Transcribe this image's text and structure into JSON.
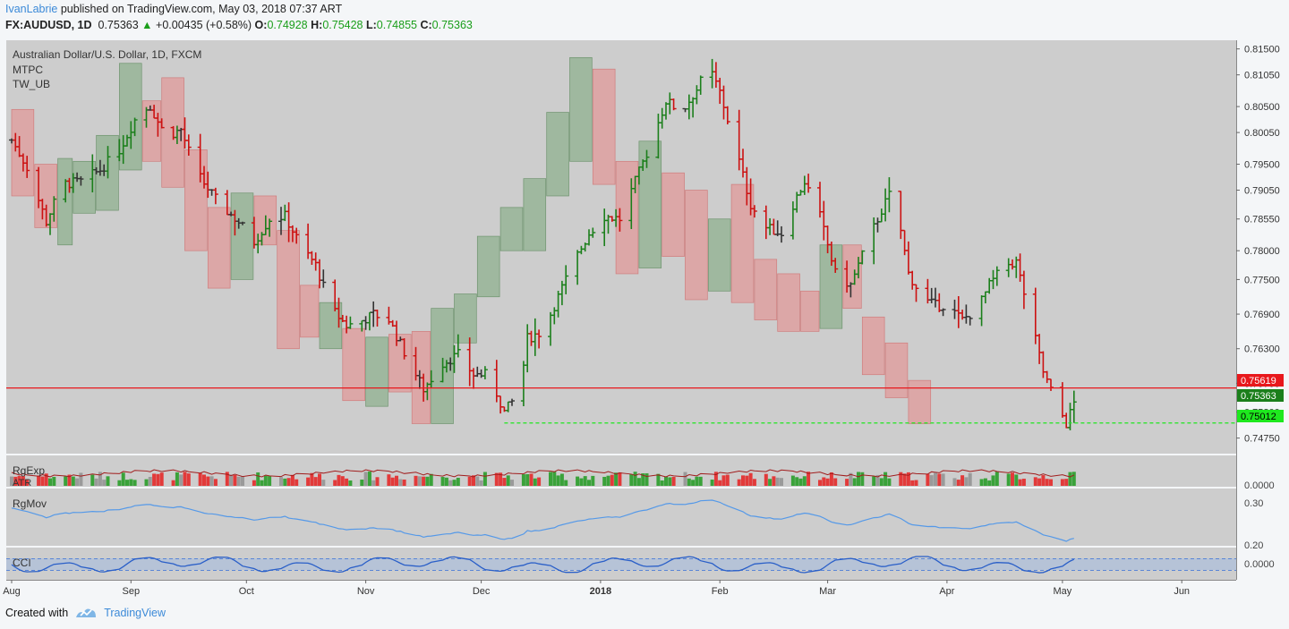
{
  "header": {
    "author": "IvanLabrie",
    "published": "published on TradingView.com, May 03, 2018 07:37 ART",
    "symbol": "FX:AUDUSD, 1D",
    "last": "0.75363",
    "change": "+0.00435 (+0.58%)",
    "change_arrow": "▲",
    "o_label": "O:",
    "o": "0.74928",
    "h_label": "H:",
    "h": "0.75428",
    "l_label": "L:",
    "l": "0.74855",
    "c_label": "C:",
    "c": "0.75363"
  },
  "footer": {
    "created_with": "Created with",
    "brand": "TradingView"
  },
  "chart_data": {
    "type": "ohlc",
    "title": "Australian Dollar/U.S. Dollar, 1D, FXCM",
    "indicators": [
      "MTPC",
      "TW_UB"
    ],
    "price_axis_ticks": [
      "0.81500",
      "0.81050",
      "0.80500",
      "0.80050",
      "0.79500",
      "0.79050",
      "0.78550",
      "0.78000",
      "0.77500",
      "0.76900",
      "0.76300",
      "0.75700",
      "0.75200",
      "0.74750"
    ],
    "price_range": [
      0.7448,
      0.8165
    ],
    "x_ticks": [
      {
        "label": "Aug",
        "day": 0
      },
      {
        "label": "Sep",
        "day": 31
      },
      {
        "label": "Oct",
        "day": 61
      },
      {
        "label": "Nov",
        "day": 92
      },
      {
        "label": "Dec",
        "day": 122
      },
      {
        "label": "2018",
        "day": 153
      },
      {
        "label": "Feb",
        "day": 184
      },
      {
        "label": "Mar",
        "day": 212
      },
      {
        "label": "Apr",
        "day": 243
      },
      {
        "label": "May",
        "day": 273
      },
      {
        "label": "Jun",
        "day": 304
      }
    ],
    "horizontal_lines": [
      {
        "value": 0.75619,
        "label": "0.75619",
        "color": "#e8181c",
        "style": "solid"
      },
      {
        "value": 0.75012,
        "label": "0.75012",
        "color": "#1ee81e",
        "style": "dashed"
      }
    ],
    "last_price_label": "0.75363",
    "colors": {
      "up": "#1b7f1b",
      "down": "#cc1111",
      "neutral": "#333333",
      "box_up": "#8fb08f",
      "box_down": "#e09a9a",
      "volume_up": "#3aa23a",
      "volume_down": "#e23a3a",
      "volume_neutral": "#9a9a9a",
      "line": "#5599e8"
    },
    "swing_path": [
      [
        0,
        0.7992
      ],
      [
        4,
        0.7945
      ],
      [
        9,
        0.785
      ],
      [
        13,
        0.7915
      ],
      [
        18,
        0.792
      ],
      [
        23,
        0.794
      ],
      [
        28,
        0.7975
      ],
      [
        33,
        0.804
      ],
      [
        36,
        0.805
      ],
      [
        40,
        0.7998
      ],
      [
        44,
        0.801
      ],
      [
        48,
        0.7935
      ],
      [
        54,
        0.788
      ],
      [
        59,
        0.785
      ],
      [
        63,
        0.7815
      ],
      [
        67,
        0.7855
      ],
      [
        71,
        0.786
      ],
      [
        75,
        0.781
      ],
      [
        79,
        0.7775
      ],
      [
        83,
        0.77
      ],
      [
        87,
        0.767
      ],
      [
        90,
        0.7675
      ],
      [
        94,
        0.769
      ],
      [
        98,
        0.768
      ],
      [
        103,
        0.761
      ],
      [
        107,
        0.756
      ],
      [
        112,
        0.7605
      ],
      [
        116,
        0.762
      ],
      [
        120,
        0.7585
      ],
      [
        124,
        0.7585
      ],
      [
        128,
        0.752
      ],
      [
        132,
        0.7555
      ],
      [
        134,
        0.7648
      ],
      [
        138,
        0.766
      ],
      [
        142,
        0.772
      ],
      [
        146,
        0.778
      ],
      [
        150,
        0.783
      ],
      [
        154,
        0.786
      ],
      [
        158,
        0.7855
      ],
      [
        162,
        0.792
      ],
      [
        166,
        0.7985
      ],
      [
        170,
        0.806
      ],
      [
        174,
        0.804
      ],
      [
        178,
        0.808
      ],
      [
        181,
        0.812
      ],
      [
        184,
        0.8075
      ],
      [
        188,
        0.798
      ],
      [
        192,
        0.788
      ],
      [
        196,
        0.784
      ],
      [
        200,
        0.783
      ],
      [
        203,
        0.788
      ],
      [
        206,
        0.792
      ],
      [
        210,
        0.786
      ],
      [
        214,
        0.776
      ],
      [
        218,
        0.774
      ],
      [
        222,
        0.781
      ],
      [
        226,
        0.787
      ],
      [
        229,
        0.791
      ],
      [
        233,
        0.776
      ],
      [
        237,
        0.7715
      ],
      [
        240,
        0.7705
      ],
      [
        243,
        0.7705
      ],
      [
        247,
        0.768
      ],
      [
        251,
        0.77
      ],
      [
        254,
        0.774
      ],
      [
        258,
        0.7775
      ],
      [
        261,
        0.778
      ],
      [
        264,
        0.77
      ],
      [
        268,
        0.759
      ],
      [
        271,
        0.754
      ],
      [
        274,
        0.75
      ],
      [
        276,
        0.7536
      ]
    ],
    "boxes": [
      {
        "d0": 0,
        "d1": 5,
        "lo": 0.7895,
        "hi": 0.8045,
        "dir": "down"
      },
      {
        "d0": 6,
        "d1": 11,
        "lo": 0.784,
        "hi": 0.795,
        "dir": "down"
      },
      {
        "d0": 12,
        "d1": 15,
        "lo": 0.781,
        "hi": 0.796,
        "dir": "up"
      },
      {
        "d0": 16,
        "d1": 21,
        "lo": 0.7865,
        "hi": 0.7955,
        "dir": "up"
      },
      {
        "d0": 22,
        "d1": 27,
        "lo": 0.787,
        "hi": 0.8,
        "dir": "up"
      },
      {
        "d0": 28,
        "d1": 33,
        "lo": 0.794,
        "hi": 0.8125,
        "dir": "up"
      },
      {
        "d0": 34,
        "d1": 38,
        "lo": 0.7955,
        "hi": 0.806,
        "dir": "down"
      },
      {
        "d0": 39,
        "d1": 44,
        "lo": 0.791,
        "hi": 0.81,
        "dir": "down"
      },
      {
        "d0": 45,
        "d1": 50,
        "lo": 0.78,
        "hi": 0.7975,
        "dir": "down"
      },
      {
        "d0": 51,
        "d1": 56,
        "lo": 0.7735,
        "hi": 0.7875,
        "dir": "down"
      },
      {
        "d0": 57,
        "d1": 62,
        "lo": 0.775,
        "hi": 0.79,
        "dir": "up"
      },
      {
        "d0": 63,
        "d1": 68,
        "lo": 0.781,
        "hi": 0.7895,
        "dir": "down"
      },
      {
        "d0": 69,
        "d1": 74,
        "lo": 0.763,
        "hi": 0.7835,
        "dir": "down"
      },
      {
        "d0": 75,
        "d1": 79,
        "lo": 0.765,
        "hi": 0.774,
        "dir": "down"
      },
      {
        "d0": 80,
        "d1": 85,
        "lo": 0.763,
        "hi": 0.771,
        "dir": "up"
      },
      {
        "d0": 86,
        "d1": 91,
        "lo": 0.754,
        "hi": 0.7665,
        "dir": "down"
      },
      {
        "d0": 92,
        "d1": 97,
        "lo": 0.753,
        "hi": 0.765,
        "dir": "up"
      },
      {
        "d0": 98,
        "d1": 103,
        "lo": 0.7555,
        "hi": 0.7655,
        "dir": "down"
      },
      {
        "d0": 104,
        "d1": 108,
        "lo": 0.75,
        "hi": 0.766,
        "dir": "down"
      },
      {
        "d0": 109,
        "d1": 114,
        "lo": 0.75,
        "hi": 0.77,
        "dir": "up"
      },
      {
        "d0": 115,
        "d1": 120,
        "lo": 0.764,
        "hi": 0.7725,
        "dir": "up"
      },
      {
        "d0": 121,
        "d1": 126,
        "lo": 0.772,
        "hi": 0.7825,
        "dir": "up"
      },
      {
        "d0": 127,
        "d1": 132,
        "lo": 0.78,
        "hi": 0.7875,
        "dir": "up"
      },
      {
        "d0": 133,
        "d1": 138,
        "lo": 0.78,
        "hi": 0.7925,
        "dir": "up"
      },
      {
        "d0": 139,
        "d1": 144,
        "lo": 0.7895,
        "hi": 0.804,
        "dir": "up"
      },
      {
        "d0": 145,
        "d1": 150,
        "lo": 0.7955,
        "hi": 0.8135,
        "dir": "up"
      },
      {
        "d0": 151,
        "d1": 156,
        "lo": 0.7915,
        "hi": 0.8115,
        "dir": "down"
      },
      {
        "d0": 157,
        "d1": 162,
        "lo": 0.776,
        "hi": 0.7955,
        "dir": "down"
      },
      {
        "d0": 163,
        "d1": 168,
        "lo": 0.777,
        "hi": 0.799,
        "dir": "up"
      },
      {
        "d0": 169,
        "d1": 174,
        "lo": 0.779,
        "hi": 0.7935,
        "dir": "down"
      },
      {
        "d0": 175,
        "d1": 180,
        "lo": 0.7715,
        "hi": 0.7905,
        "dir": "down"
      },
      {
        "d0": 181,
        "d1": 186,
        "lo": 0.773,
        "hi": 0.7855,
        "dir": "up"
      },
      {
        "d0": 187,
        "d1": 192,
        "lo": 0.771,
        "hi": 0.7915,
        "dir": "down"
      },
      {
        "d0": 193,
        "d1": 198,
        "lo": 0.768,
        "hi": 0.7785,
        "dir": "down"
      },
      {
        "d0": 199,
        "d1": 204,
        "lo": 0.766,
        "hi": 0.776,
        "dir": "down"
      },
      {
        "d0": 205,
        "d1": 209,
        "lo": 0.766,
        "hi": 0.773,
        "dir": "down"
      },
      {
        "d0": 210,
        "d1": 215,
        "lo": 0.7665,
        "hi": 0.781,
        "dir": "up"
      },
      {
        "d0": 216,
        "d1": 220,
        "lo": 0.77,
        "hi": 0.781,
        "dir": "down"
      },
      {
        "d0": 221,
        "d1": 226,
        "lo": 0.7585,
        "hi": 0.7685,
        "dir": "down"
      },
      {
        "d0": 227,
        "d1": 232,
        "lo": 0.7545,
        "hi": 0.764,
        "dir": "down"
      },
      {
        "d0": 233,
        "d1": 238,
        "lo": 0.75,
        "hi": 0.7575,
        "dir": "down"
      }
    ],
    "panels": [
      {
        "name": "RgExp",
        "sub": "ATR",
        "ticks": [
          "0.0000"
        ]
      },
      {
        "name": "RgMov",
        "ticks": [
          "0.30",
          "0.20"
        ]
      },
      {
        "name": "CCI",
        "ticks": [
          "0.0000"
        ]
      }
    ]
  }
}
